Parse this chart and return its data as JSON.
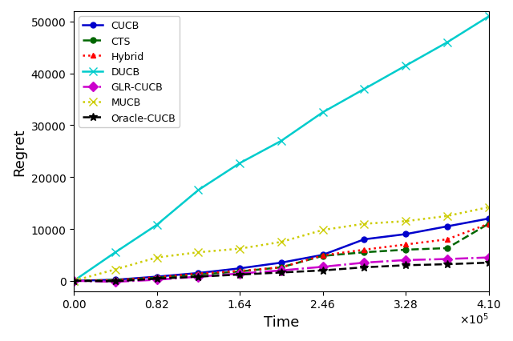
{
  "title": "",
  "xlabel": "Time",
  "ylabel": "Regret",
  "xlim": [
    0,
    410000
  ],
  "ylim": [
    -2000,
    52000
  ],
  "xtick_labels": [
    "0.00",
    "0.82",
    "1.64",
    "2.46",
    "3.28",
    "4.10"
  ],
  "xtick_vals": [
    0,
    82000,
    164000,
    246000,
    328000,
    410000
  ],
  "ytick_vals": [
    0,
    10000,
    20000,
    30000,
    40000,
    50000
  ],
  "series": [
    {
      "label": "CUCB",
      "color": "#0000cc",
      "linestyle": "-",
      "marker": "o",
      "markersize": 5,
      "linewidth": 1.8,
      "x": [
        0,
        41000,
        82000,
        123000,
        164000,
        205000,
        246000,
        287000,
        328000,
        369000,
        410000
      ],
      "y": [
        0,
        200,
        800,
        1500,
        2400,
        3500,
        5000,
        8000,
        9000,
        10500,
        12000
      ]
    },
    {
      "label": "CTS",
      "color": "#006600",
      "linestyle": "--",
      "marker": "o",
      "markersize": 5,
      "linewidth": 1.8,
      "x": [
        0,
        41000,
        82000,
        123000,
        164000,
        205000,
        246000,
        287000,
        328000,
        369000,
        410000
      ],
      "y": [
        0,
        150,
        600,
        1200,
        1800,
        2600,
        4800,
        5500,
        6000,
        6300,
        11000
      ]
    },
    {
      "label": "Hybrid",
      "color": "#ff0000",
      "linestyle": ":",
      "marker": "^",
      "markersize": 5,
      "linewidth": 1.8,
      "x": [
        0,
        41000,
        82000,
        123000,
        164000,
        205000,
        246000,
        287000,
        328000,
        369000,
        410000
      ],
      "y": [
        0,
        100,
        700,
        1400,
        1900,
        2600,
        4900,
        6000,
        7000,
        8000,
        11000
      ]
    },
    {
      "label": "DUCB",
      "color": "#00cccc",
      "linestyle": "-",
      "marker": "x",
      "markersize": 7,
      "linewidth": 1.8,
      "x": [
        0,
        41000,
        82000,
        123000,
        164000,
        205000,
        246000,
        287000,
        328000,
        369000,
        410000
      ],
      "y": [
        0,
        5500,
        10800,
        17500,
        22700,
        27000,
        32500,
        37000,
        41500,
        46000,
        51000
      ]
    },
    {
      "label": "GLR-CUCB",
      "color": "#cc00cc",
      "linestyle": "-.",
      "marker": "D",
      "markersize": 6,
      "linewidth": 1.8,
      "x": [
        0,
        41000,
        82000,
        123000,
        164000,
        205000,
        246000,
        287000,
        328000,
        369000,
        410000
      ],
      "y": [
        0,
        -200,
        200,
        800,
        1400,
        2000,
        2700,
        3500,
        4000,
        4200,
        4500
      ]
    },
    {
      "label": "MUCB",
      "color": "#cccc00",
      "linestyle": ":",
      "marker": "x",
      "markersize": 7,
      "linewidth": 1.8,
      "x": [
        0,
        41000,
        82000,
        123000,
        164000,
        205000,
        246000,
        287000,
        328000,
        369000,
        410000
      ],
      "y": [
        0,
        2200,
        4500,
        5500,
        6200,
        7500,
        9800,
        11000,
        11500,
        12500,
        14200
      ]
    },
    {
      "label": "Oracle-CUCB",
      "color": "#000000",
      "linestyle": "--",
      "marker": "*",
      "markersize": 7,
      "linewidth": 1.8,
      "x": [
        0,
        41000,
        82000,
        123000,
        164000,
        205000,
        246000,
        287000,
        328000,
        369000,
        410000
      ],
      "y": [
        0,
        -100,
        400,
        800,
        1200,
        1600,
        2000,
        2600,
        3000,
        3200,
        3500
      ]
    }
  ]
}
